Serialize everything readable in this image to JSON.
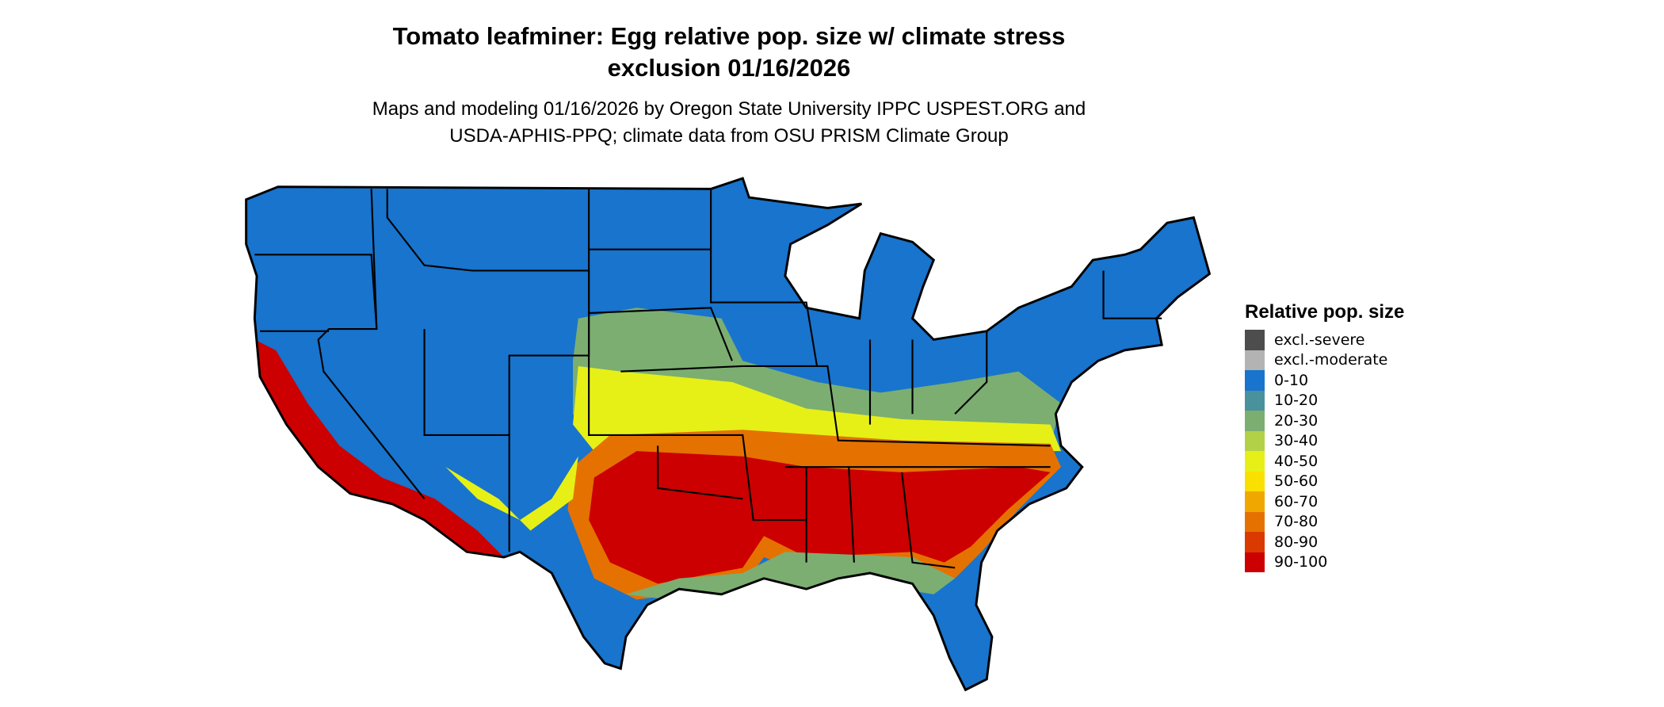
{
  "title": {
    "line1": "Tomato leafminer: Egg relative pop. size w/ climate stress",
    "line2": "exclusion 01/16/2026"
  },
  "subtitle": {
    "line1": "Maps and modeling 01/16/2026 by Oregon State University IPPC USPEST.ORG and",
    "line2": "USDA-APHIS-PPQ; climate data from OSU PRISM Climate Group"
  },
  "legend": {
    "title": "Relative pop. size",
    "items": [
      {
        "label": "excl.-severe",
        "color": "#4d4d4d"
      },
      {
        "label": "excl.-moderate",
        "color": "#b3b3b3"
      },
      {
        "label": "0-10",
        "color": "#1874cd"
      },
      {
        "label": "10-20",
        "color": "#4a919e"
      },
      {
        "label": "20-30",
        "color": "#7cae72"
      },
      {
        "label": "30-40",
        "color": "#b2d147"
      },
      {
        "label": "40-50",
        "color": "#e6f016"
      },
      {
        "label": "50-60",
        "color": "#f9e000"
      },
      {
        "label": "60-70",
        "color": "#f0a800"
      },
      {
        "label": "70-80",
        "color": "#e57200"
      },
      {
        "label": "80-90",
        "color": "#da3a00"
      },
      {
        "label": "90-100",
        "color": "#cc0000"
      }
    ]
  }
}
